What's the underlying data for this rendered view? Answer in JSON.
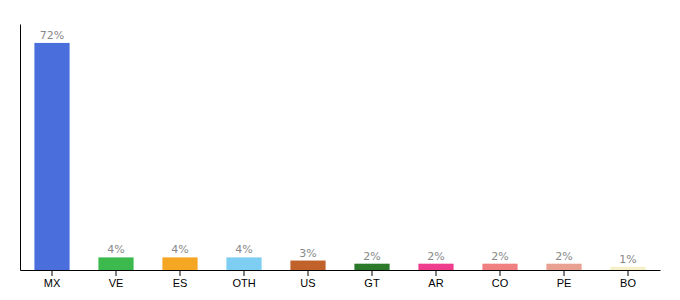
{
  "chart_data": {
    "type": "bar",
    "categories": [
      "MX",
      "VE",
      "ES",
      "OTH",
      "US",
      "GT",
      "AR",
      "CO",
      "PE",
      "BO"
    ],
    "values": [
      72,
      4,
      4,
      4,
      3,
      2,
      2,
      2,
      2,
      1
    ],
    "colors": [
      "#4a6fdc",
      "#3dba4e",
      "#f5a623",
      "#7ecef4",
      "#c0622a",
      "#2a7a2a",
      "#f03c8c",
      "#f08080",
      "#e8a090",
      "#f5f0c8"
    ],
    "ylim": [
      0,
      78
    ],
    "data_labels": true,
    "value_labels": [
      "72%",
      "4%",
      "4%",
      "4%",
      "3%",
      "2%",
      "2%",
      "2%",
      "2%",
      "1%"
    ],
    "tick_labels": "x"
  }
}
